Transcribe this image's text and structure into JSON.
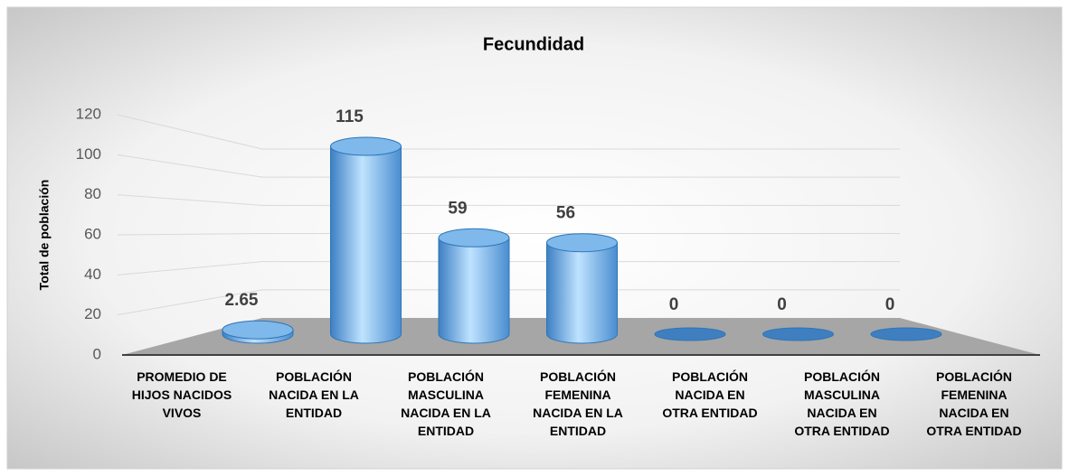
{
  "chart_data": {
    "type": "bar3d",
    "title": "Fecundidad",
    "y_label": "Total de población",
    "categories": [
      "PROMEDIO DE HIJOS NACIDOS VIVOS",
      "POBLACIÓN NACIDA EN LA ENTIDAD",
      "POBLACIÓN MASCULINA NACIDA EN LA ENTIDAD",
      "POBLACIÓN FEMENINA NACIDA EN LA ENTIDAD",
      "POBLACIÓN NACIDA EN OTRA ENTIDAD",
      "POBLACIÓN MASCULINA NACIDA EN OTRA ENTIDAD",
      "POBLACIÓN FEMENINA NACIDA EN OTRA ENTIDAD"
    ],
    "values": [
      2.65,
      115,
      59,
      56,
      0,
      0,
      0
    ],
    "color": "#5b9bd5",
    "ylim": [
      0,
      120
    ],
    "yticks": [
      0,
      20,
      40,
      60,
      80,
      100,
      120
    ],
    "grid": true
  }
}
